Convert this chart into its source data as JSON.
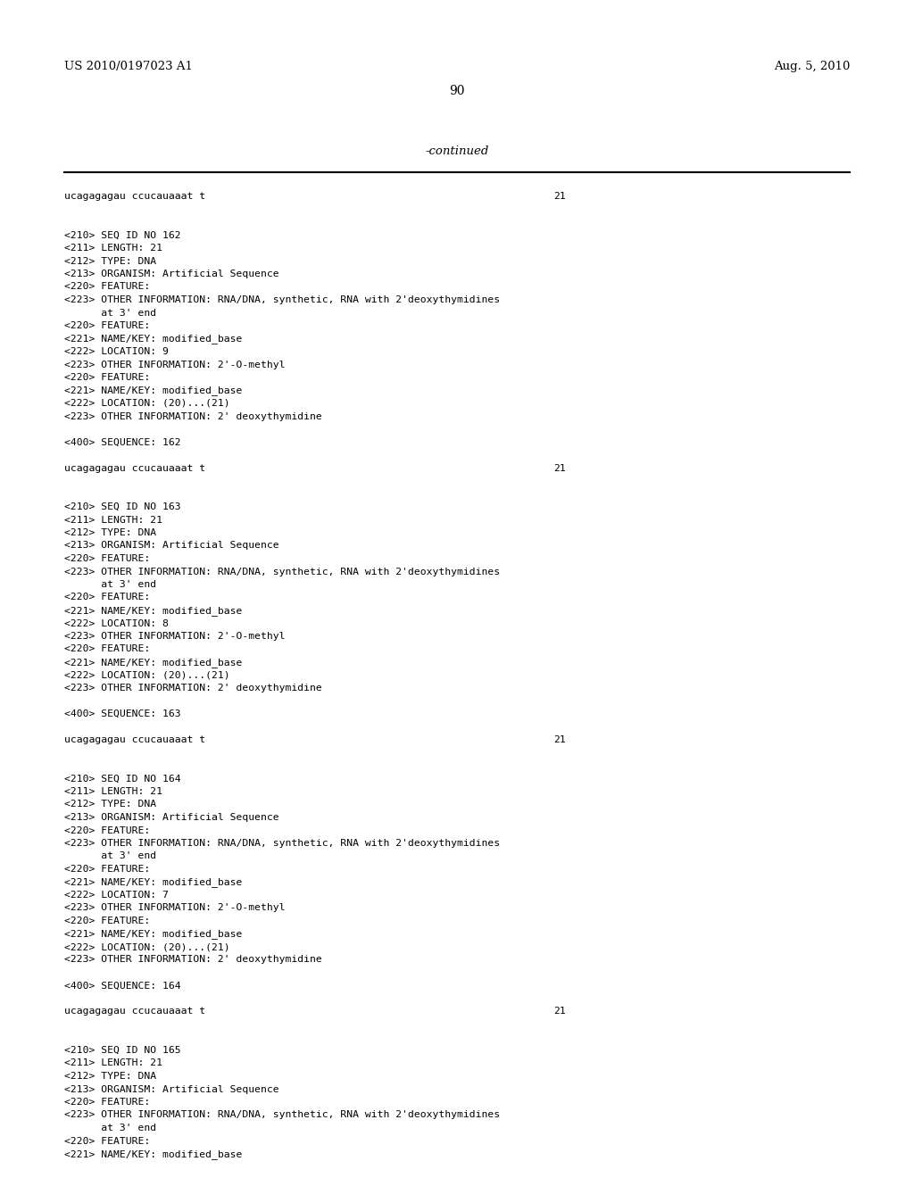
{
  "background_color": "#ffffff",
  "header_left": "US 2010/0197023 A1",
  "header_right": "Aug. 5, 2010",
  "page_number": "90",
  "continued_text": "-continued",
  "content": [
    {
      "type": "sequence",
      "text": "ucagagagau ccucauaaat t",
      "num": "21"
    },
    {
      "type": "blank"
    },
    {
      "type": "blank"
    },
    {
      "type": "field",
      "text": "<210> SEQ ID NO 162"
    },
    {
      "type": "field",
      "text": "<211> LENGTH: 21"
    },
    {
      "type": "field",
      "text": "<212> TYPE: DNA"
    },
    {
      "type": "field",
      "text": "<213> ORGANISM: Artificial Sequence"
    },
    {
      "type": "field",
      "text": "<220> FEATURE:"
    },
    {
      "type": "field",
      "text": "<223> OTHER INFORMATION: RNA/DNA, synthetic, RNA with 2'deoxythymidines"
    },
    {
      "type": "field_indent",
      "text": "      at 3' end"
    },
    {
      "type": "field",
      "text": "<220> FEATURE:"
    },
    {
      "type": "field",
      "text": "<221> NAME/KEY: modified_base"
    },
    {
      "type": "field",
      "text": "<222> LOCATION: 9"
    },
    {
      "type": "field",
      "text": "<223> OTHER INFORMATION: 2'-O-methyl"
    },
    {
      "type": "field",
      "text": "<220> FEATURE:"
    },
    {
      "type": "field",
      "text": "<221> NAME/KEY: modified_base"
    },
    {
      "type": "field",
      "text": "<222> LOCATION: (20)...(21)"
    },
    {
      "type": "field",
      "text": "<223> OTHER INFORMATION: 2' deoxythymidine"
    },
    {
      "type": "blank"
    },
    {
      "type": "field",
      "text": "<400> SEQUENCE: 162"
    },
    {
      "type": "blank"
    },
    {
      "type": "sequence",
      "text": "ucagagagau ccucauaaat t",
      "num": "21"
    },
    {
      "type": "blank"
    },
    {
      "type": "blank"
    },
    {
      "type": "field",
      "text": "<210> SEQ ID NO 163"
    },
    {
      "type": "field",
      "text": "<211> LENGTH: 21"
    },
    {
      "type": "field",
      "text": "<212> TYPE: DNA"
    },
    {
      "type": "field",
      "text": "<213> ORGANISM: Artificial Sequence"
    },
    {
      "type": "field",
      "text": "<220> FEATURE:"
    },
    {
      "type": "field",
      "text": "<223> OTHER INFORMATION: RNA/DNA, synthetic, RNA with 2'deoxythymidines"
    },
    {
      "type": "field_indent",
      "text": "      at 3' end"
    },
    {
      "type": "field",
      "text": "<220> FEATURE:"
    },
    {
      "type": "field",
      "text": "<221> NAME/KEY: modified_base"
    },
    {
      "type": "field",
      "text": "<222> LOCATION: 8"
    },
    {
      "type": "field",
      "text": "<223> OTHER INFORMATION: 2'-O-methyl"
    },
    {
      "type": "field",
      "text": "<220> FEATURE:"
    },
    {
      "type": "field",
      "text": "<221> NAME/KEY: modified_base"
    },
    {
      "type": "field",
      "text": "<222> LOCATION: (20)...(21)"
    },
    {
      "type": "field",
      "text": "<223> OTHER INFORMATION: 2' deoxythymidine"
    },
    {
      "type": "blank"
    },
    {
      "type": "field",
      "text": "<400> SEQUENCE: 163"
    },
    {
      "type": "blank"
    },
    {
      "type": "sequence",
      "text": "ucagagagau ccucauaaat t",
      "num": "21"
    },
    {
      "type": "blank"
    },
    {
      "type": "blank"
    },
    {
      "type": "field",
      "text": "<210> SEQ ID NO 164"
    },
    {
      "type": "field",
      "text": "<211> LENGTH: 21"
    },
    {
      "type": "field",
      "text": "<212> TYPE: DNA"
    },
    {
      "type": "field",
      "text": "<213> ORGANISM: Artificial Sequence"
    },
    {
      "type": "field",
      "text": "<220> FEATURE:"
    },
    {
      "type": "field",
      "text": "<223> OTHER INFORMATION: RNA/DNA, synthetic, RNA with 2'deoxythymidines"
    },
    {
      "type": "field_indent",
      "text": "      at 3' end"
    },
    {
      "type": "field",
      "text": "<220> FEATURE:"
    },
    {
      "type": "field",
      "text": "<221> NAME/KEY: modified_base"
    },
    {
      "type": "field",
      "text": "<222> LOCATION: 7"
    },
    {
      "type": "field",
      "text": "<223> OTHER INFORMATION: 2'-O-methyl"
    },
    {
      "type": "field",
      "text": "<220> FEATURE:"
    },
    {
      "type": "field",
      "text": "<221> NAME/KEY: modified_base"
    },
    {
      "type": "field",
      "text": "<222> LOCATION: (20)...(21)"
    },
    {
      "type": "field",
      "text": "<223> OTHER INFORMATION: 2' deoxythymidine"
    },
    {
      "type": "blank"
    },
    {
      "type": "field",
      "text": "<400> SEQUENCE: 164"
    },
    {
      "type": "blank"
    },
    {
      "type": "sequence",
      "text": "ucagagagau ccucauaaat t",
      "num": "21"
    },
    {
      "type": "blank"
    },
    {
      "type": "blank"
    },
    {
      "type": "field",
      "text": "<210> SEQ ID NO 165"
    },
    {
      "type": "field",
      "text": "<211> LENGTH: 21"
    },
    {
      "type": "field",
      "text": "<212> TYPE: DNA"
    },
    {
      "type": "field",
      "text": "<213> ORGANISM: Artificial Sequence"
    },
    {
      "type": "field",
      "text": "<220> FEATURE:"
    },
    {
      "type": "field",
      "text": "<223> OTHER INFORMATION: RNA/DNA, synthetic, RNA with 2'deoxythymidines"
    },
    {
      "type": "field_indent",
      "text": "      at 3' end"
    },
    {
      "type": "field",
      "text": "<220> FEATURE:"
    },
    {
      "type": "field",
      "text": "<221> NAME/KEY: modified_base"
    }
  ]
}
